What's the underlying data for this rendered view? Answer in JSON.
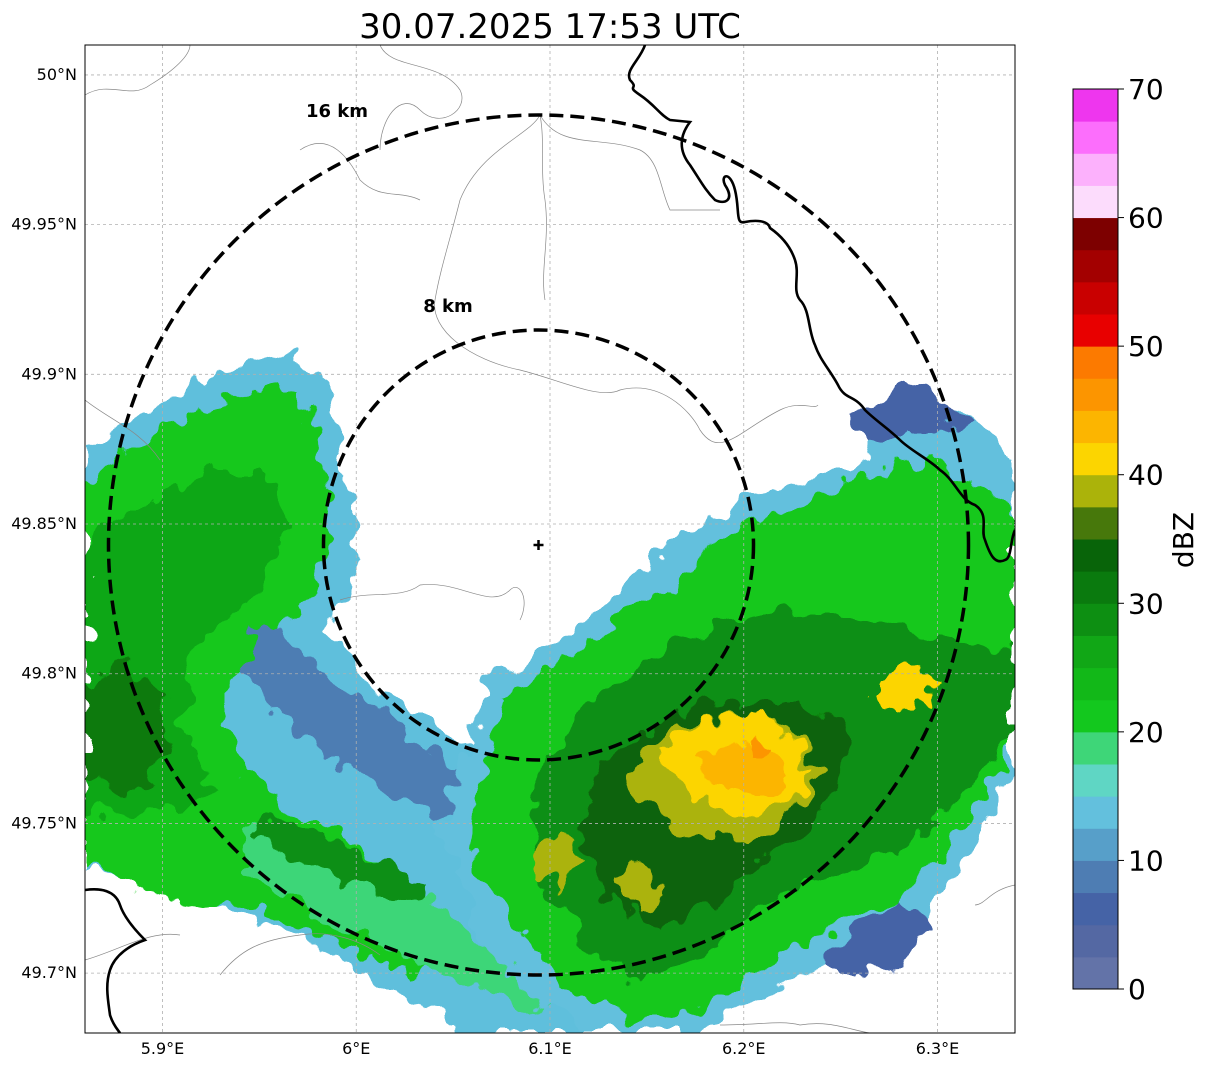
{
  "title": "30.07.2025 17:53 UTC",
  "map": {
    "lon_range": [
      5.86,
      6.34
    ],
    "lat_range": [
      49.68,
      50.01
    ],
    "gridlines": true,
    "lon_ticks": [
      {
        "value": 5.9,
        "label": "5.9°E"
      },
      {
        "value": 6.0,
        "label": "6°E"
      },
      {
        "value": 6.1,
        "label": "6.1°E"
      },
      {
        "value": 6.2,
        "label": "6.2°E"
      },
      {
        "value": 6.3,
        "label": "6.3°E"
      }
    ],
    "lat_ticks": [
      {
        "value": 50.0,
        "label": "50°N"
      },
      {
        "value": 49.95,
        "label": "49.95°N"
      },
      {
        "value": 49.9,
        "label": "49.9°N"
      },
      {
        "value": 49.85,
        "label": "49.85°N"
      },
      {
        "value": 49.8,
        "label": "49.8°N"
      },
      {
        "value": 49.75,
        "label": "49.75°N"
      },
      {
        "value": 49.7,
        "label": "49.7°N"
      }
    ],
    "radar_site": {
      "lon": 6.095,
      "lat": 49.843
    }
  },
  "range_rings": [
    {
      "radius_km": 8,
      "label": "8 km"
    },
    {
      "radius_km": 16,
      "label": "16 km"
    }
  ],
  "colorbar": {
    "label": "dBZ",
    "vmin": 0,
    "vmax": 70,
    "ticks": [
      0,
      10,
      20,
      30,
      40,
      50,
      60,
      70
    ],
    "colors": [
      "#6373a8",
      "#5468a3",
      "#4563a6",
      "#4e7db3",
      "#579fc9",
      "#63c0dd",
      "#5fd6c4",
      "#3ed678",
      "#13c81e",
      "#12b818",
      "#11a716",
      "#0d8f12",
      "#0a7a0e",
      "#086409",
      "#47780b",
      "#abb30a",
      "#fcd500",
      "#fcb500",
      "#fc9500",
      "#fc7a00",
      "#e80000",
      "#c90000",
      "#a30000",
      "#7d0000",
      "#fcdcfc",
      "#fcb1fc",
      "#fc6efc",
      "#ee36ee"
    ]
  },
  "chart_data": {
    "type": "heatmap",
    "title": "30.07.2025 17:53 UTC",
    "xlabel": "",
    "ylabel": "",
    "colorbar_label": "dBZ",
    "xlim": [
      5.86,
      6.34
    ],
    "ylim": [
      49.68,
      50.01
    ],
    "x_ticks": [
      "5.9°E",
      "6°E",
      "6.1°E",
      "6.2°E",
      "6.3°E"
    ],
    "y_ticks": [
      "49.7°N",
      "49.75°N",
      "49.8°N",
      "49.85°N",
      "49.9°N",
      "49.95°N",
      "50°N"
    ],
    "range_rings_km": [
      8,
      16
    ],
    "echo_regions": [
      {
        "lon": 5.93,
        "lat": 49.86,
        "dbz": 22,
        "extent_lon": 0.08,
        "extent_lat": 0.05
      },
      {
        "lon": 5.9,
        "lat": 49.79,
        "dbz": 25,
        "extent_lon": 0.05,
        "extent_lat": 0.06
      },
      {
        "lon": 6.02,
        "lat": 49.75,
        "dbz": 12,
        "extent_lon": 0.07,
        "extent_lat": 0.03
      },
      {
        "lon": 6.19,
        "lat": 49.78,
        "dbz": 28,
        "extent_lon": 0.09,
        "extent_lat": 0.05
      },
      {
        "lon": 6.2,
        "lat": 49.775,
        "dbz": 41,
        "extent_lon": 0.04,
        "extent_lat": 0.02
      },
      {
        "lon": 6.285,
        "lat": 49.795,
        "dbz": 42,
        "extent_lon": 0.015,
        "extent_lat": 0.01
      },
      {
        "lon": 6.16,
        "lat": 49.73,
        "dbz": 33,
        "extent_lon": 0.05,
        "extent_lat": 0.03
      },
      {
        "lon": 6.29,
        "lat": 49.85,
        "dbz": 22,
        "extent_lon": 0.05,
        "extent_lat": 0.04
      },
      {
        "lon": 6.08,
        "lat": 49.71,
        "dbz": 18,
        "extent_lon": 0.05,
        "extent_lat": 0.02
      }
    ]
  }
}
